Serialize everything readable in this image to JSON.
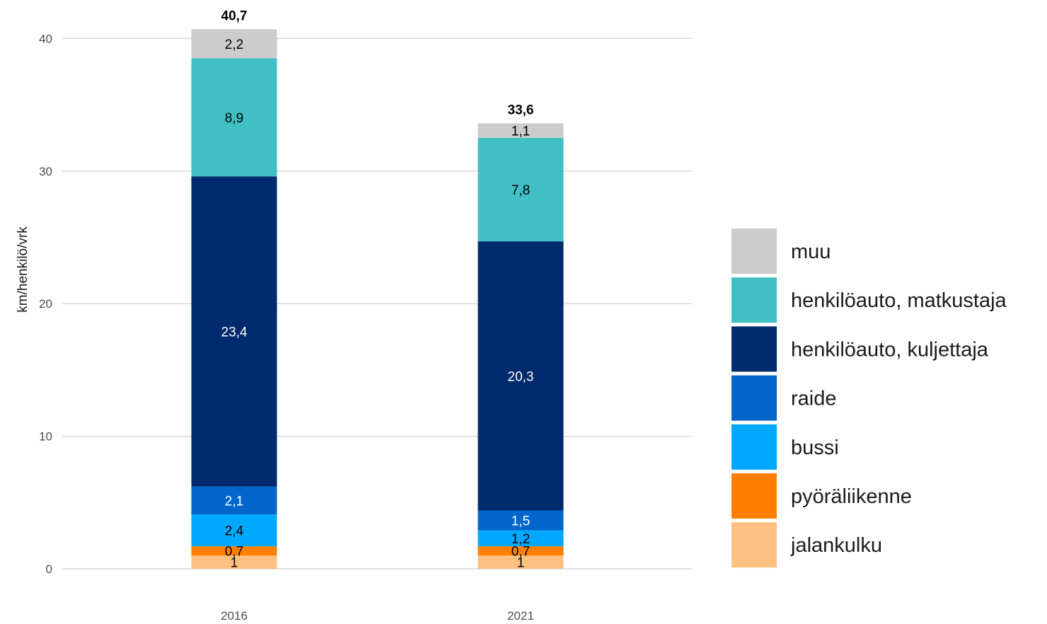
{
  "chart_data": {
    "type": "bar",
    "stacked": true,
    "categories": [
      "2016",
      "2021"
    ],
    "ylabel": "km/henkilö/vrk",
    "ylim": [
      0,
      40.7
    ],
    "yticks": [
      0,
      10,
      20,
      30,
      40
    ],
    "grid": true,
    "legend": "right",
    "totals": [
      "40,7",
      "33,6"
    ],
    "series": [
      {
        "name": "jalankulku",
        "color": "#FFC080",
        "label_color": "#000000",
        "values": [
          1.0,
          1.0
        ],
        "labels": [
          "1",
          "1"
        ]
      },
      {
        "name": "pyöräliikenne",
        "color": "#FF8000",
        "label_color": "#000000",
        "values": [
          0.7,
          0.7
        ],
        "labels": [
          "0,7",
          "0,7"
        ]
      },
      {
        "name": "bussi",
        "color": "#00A8FF",
        "label_color": "#000000",
        "values": [
          2.4,
          1.2
        ],
        "labels": [
          "2,4",
          "1,2"
        ]
      },
      {
        "name": "raide",
        "color": "#0066CC",
        "label_color": "#ffffff",
        "values": [
          2.1,
          1.5
        ],
        "labels": [
          "2,1",
          "1,5"
        ]
      },
      {
        "name": "henkilöauto, kuljettaja",
        "color": "#002A6E",
        "label_color": "#ffffff",
        "values": [
          23.4,
          20.3
        ],
        "labels": [
          "23,4",
          "20,3"
        ]
      },
      {
        "name": "henkilöauto, matkustaja",
        "color": "#40C0C4",
        "label_color": "#000000",
        "values": [
          8.9,
          7.8
        ],
        "labels": [
          "8,9",
          "7,8"
        ]
      },
      {
        "name": "muu",
        "color": "#CCCCCC",
        "label_color": "#000000",
        "values": [
          2.2,
          1.1
        ],
        "labels": [
          "2,2",
          "1,1"
        ]
      }
    ]
  }
}
